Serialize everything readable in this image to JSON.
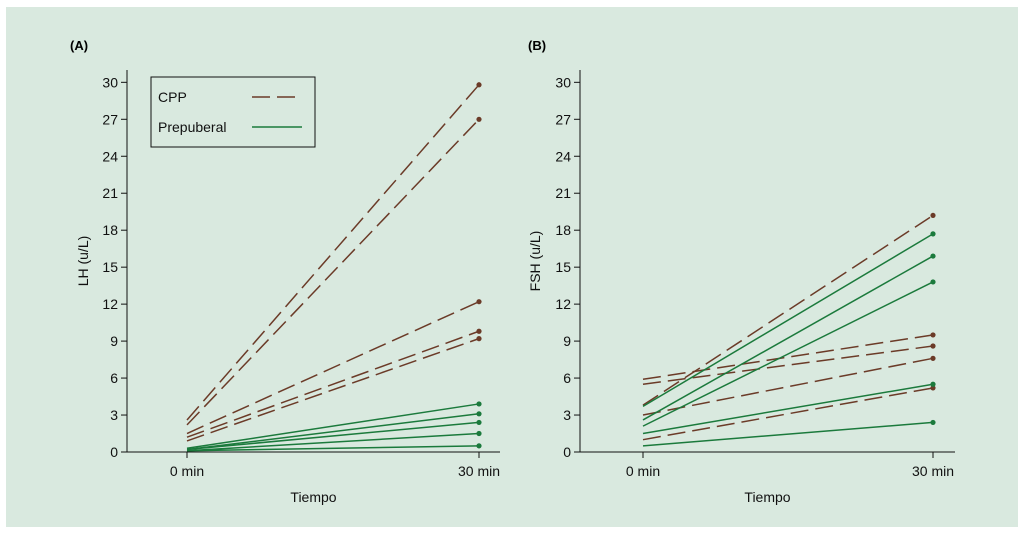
{
  "colors": {
    "page_background": "#ffffff",
    "figure_background": "#d9e9df",
    "cpp": "#6b3b28",
    "prepuberal": "#1b7a3c",
    "axis": "#111111"
  },
  "legend": {
    "items": [
      {
        "label": "CPP",
        "style": "dashed",
        "color": "#6b3b28"
      },
      {
        "label": "Prepuberal",
        "style": "solid",
        "color": "#1b7a3c"
      }
    ]
  },
  "chart_data": [
    {
      "type": "line",
      "panel_label": "(A)",
      "xlabel": "Tiempo",
      "ylabel": "LH (u/L)",
      "categories": [
        "0 min",
        "30 min"
      ],
      "ylim": [
        0,
        31
      ],
      "yticks": [
        "0",
        "3",
        "6",
        "9",
        "12",
        "15",
        "18",
        "21",
        "24",
        "27",
        "30"
      ],
      "legend_position": "top-left",
      "groups": [
        {
          "name": "CPP",
          "style": "dashed",
          "series": [
            {
              "values": [
                2.6,
                29.8
              ]
            },
            {
              "values": [
                2.2,
                27.0
              ]
            },
            {
              "values": [
                1.5,
                12.2
              ]
            },
            {
              "values": [
                1.2,
                9.8
              ]
            },
            {
              "values": [
                0.9,
                9.2
              ]
            }
          ]
        },
        {
          "name": "Prepuberal",
          "style": "solid",
          "series": [
            {
              "values": [
                0.3,
                3.9
              ]
            },
            {
              "values": [
                0.2,
                3.1
              ]
            },
            {
              "values": [
                0.2,
                2.4
              ]
            },
            {
              "values": [
                0.1,
                1.5
              ]
            },
            {
              "values": [
                0.1,
                0.5
              ]
            }
          ]
        }
      ]
    },
    {
      "type": "line",
      "panel_label": "(B)",
      "xlabel": "Tiempo",
      "ylabel": "FSH (u/L)",
      "categories": [
        "0 min",
        "30 min"
      ],
      "ylim": [
        0,
        31
      ],
      "yticks": [
        "0",
        "3",
        "6",
        "9",
        "12",
        "15",
        "18",
        "21",
        "24",
        "27",
        "30"
      ],
      "groups": [
        {
          "name": "CPP",
          "style": "dashed",
          "series": [
            {
              "values": [
                3.8,
                19.2
              ]
            },
            {
              "values": [
                5.9,
                9.5
              ]
            },
            {
              "values": [
                5.5,
                8.6
              ]
            },
            {
              "values": [
                3.0,
                7.6
              ]
            },
            {
              "values": [
                1.0,
                5.2
              ]
            }
          ]
        },
        {
          "name": "Prepuberal",
          "style": "solid",
          "series": [
            {
              "values": [
                3.7,
                17.7
              ]
            },
            {
              "values": [
                2.6,
                15.9
              ]
            },
            {
              "values": [
                2.1,
                13.8
              ]
            },
            {
              "values": [
                1.5,
                5.5
              ]
            },
            {
              "values": [
                0.5,
                2.4
              ]
            }
          ]
        }
      ]
    }
  ]
}
